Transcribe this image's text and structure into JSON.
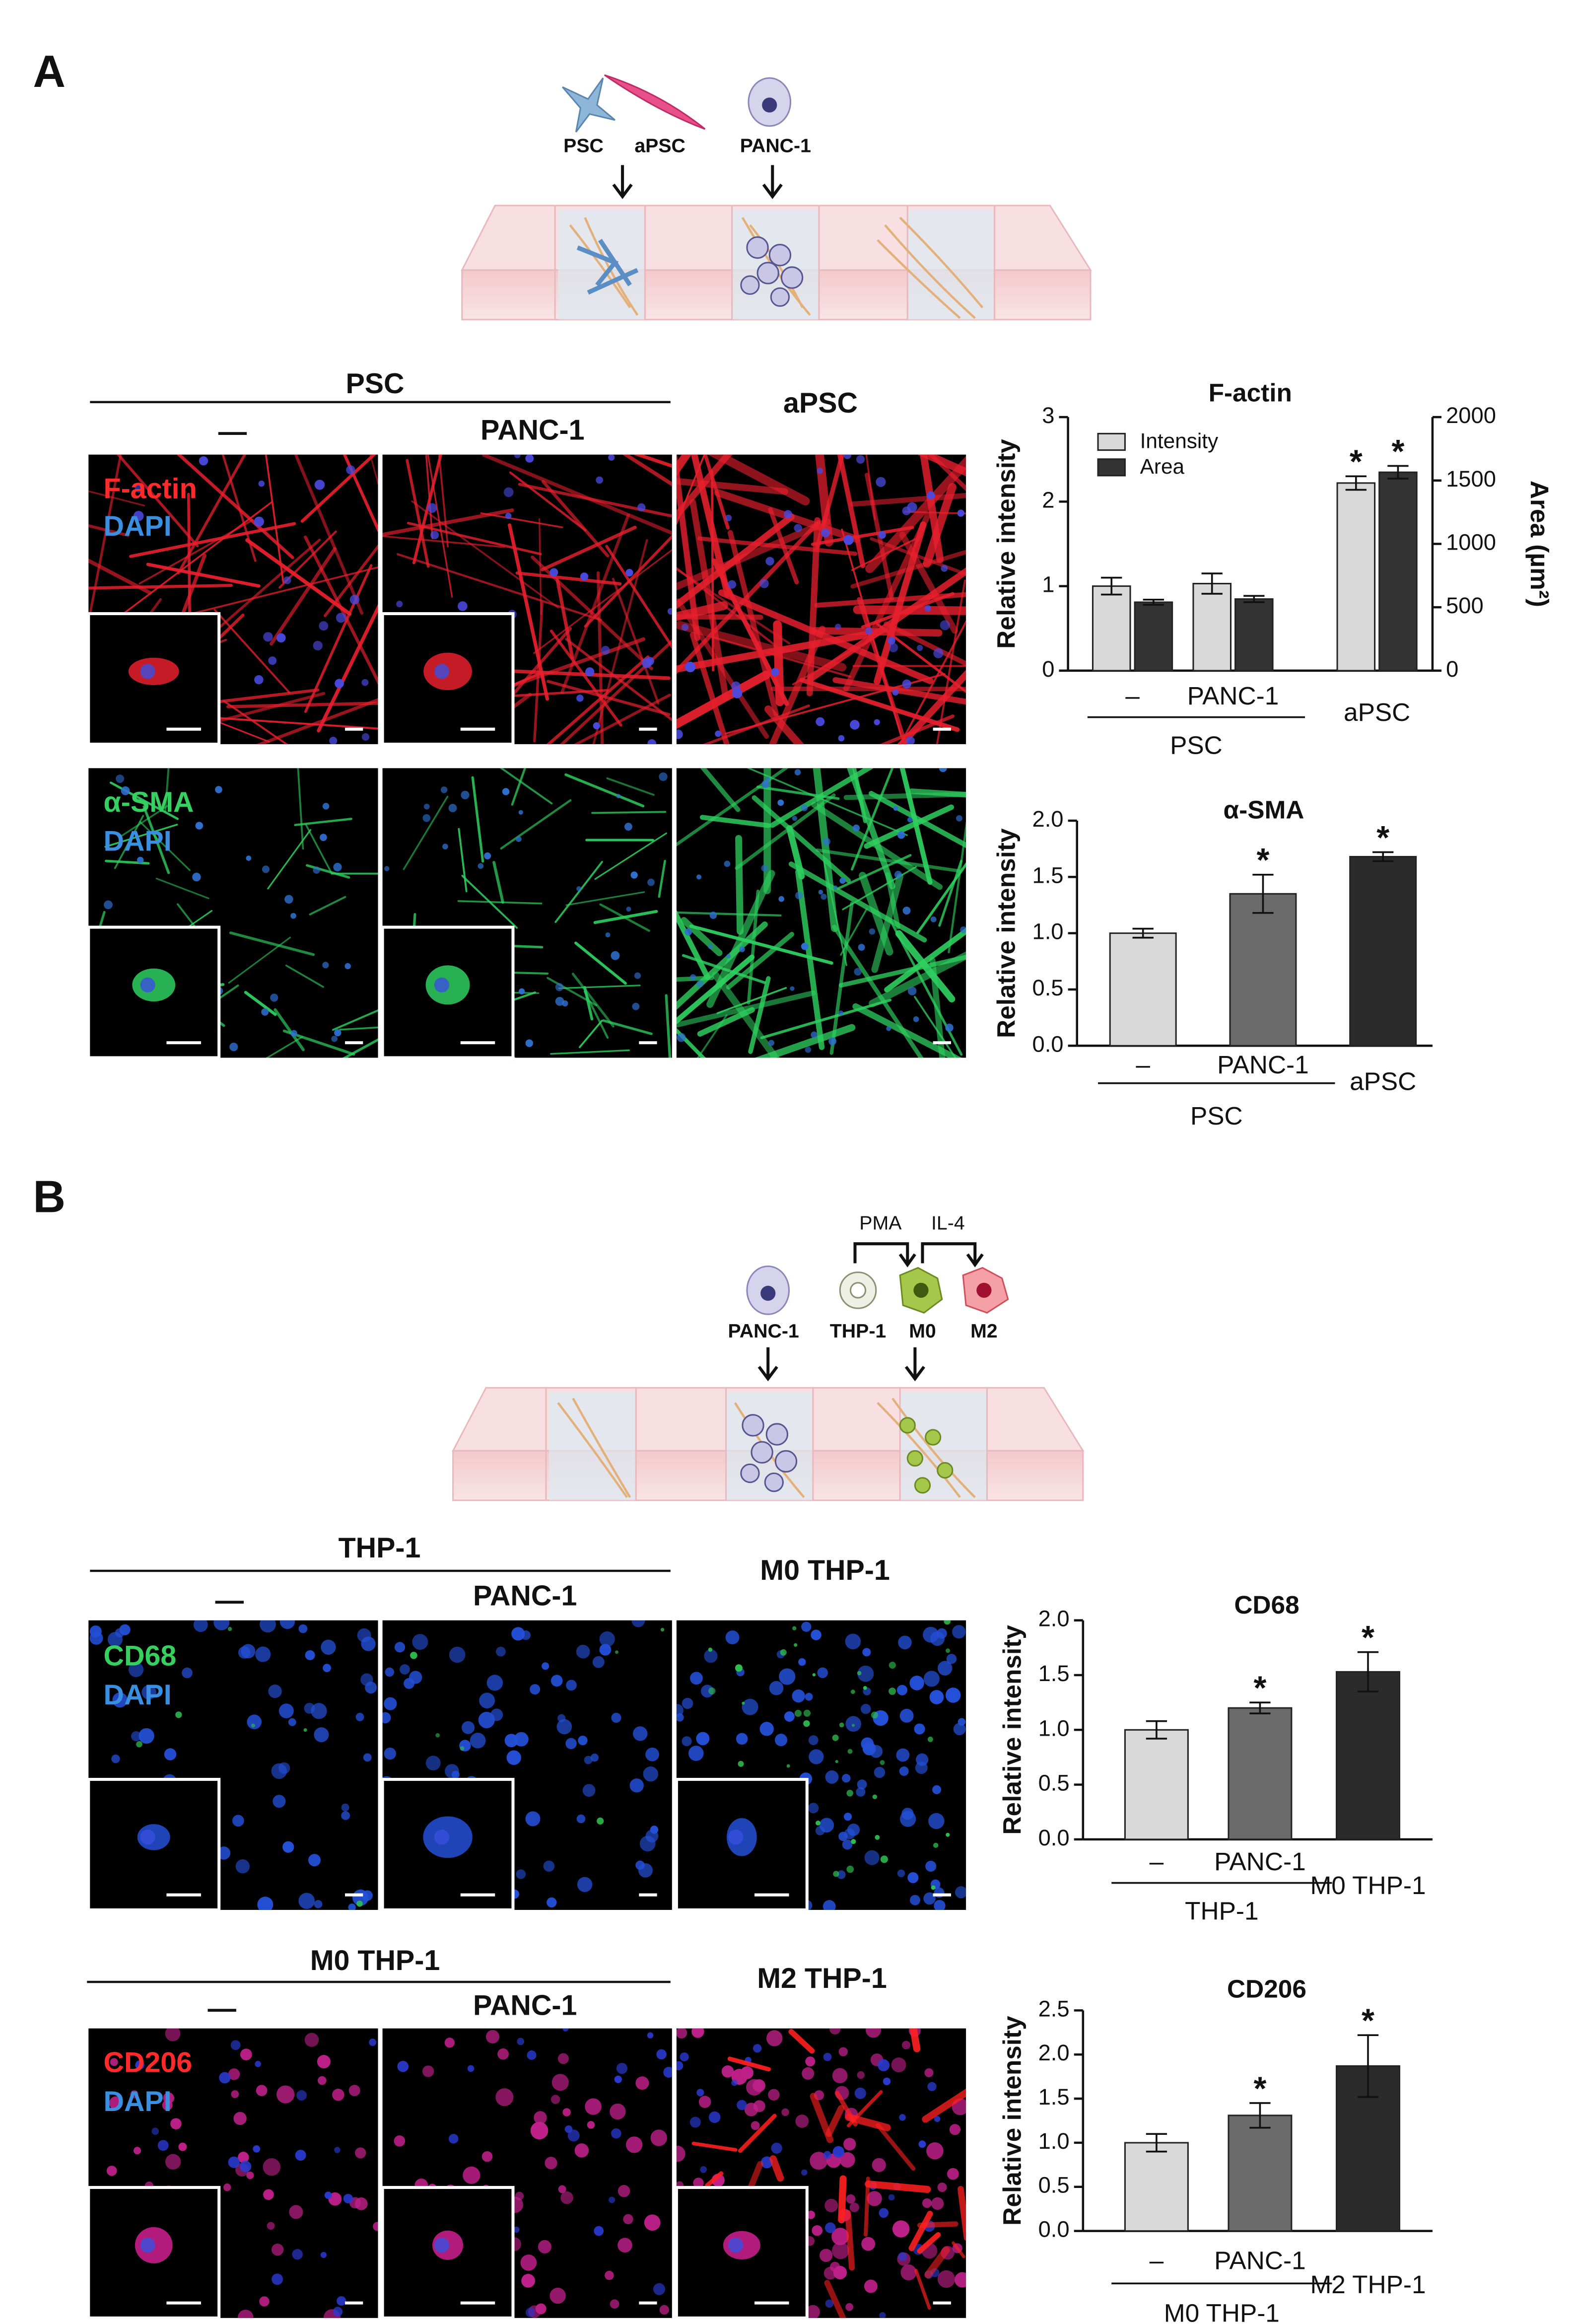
{
  "panel_a": {
    "label": "A",
    "schematic": {
      "cells": [
        "PSC",
        "aPSC",
        "PANC-1"
      ]
    },
    "rows": [
      {
        "group": "PSC",
        "conditions": [
          "—",
          "PANC-1"
        ],
        "third": "aPSC",
        "stains": [
          "F-actin",
          "DAPI"
        ]
      },
      {
        "stains": [
          "α-SMA",
          "DAPI"
        ]
      }
    ]
  },
  "panel_b": {
    "label": "B",
    "schematic": {
      "treatments": [
        "PMA",
        "IL-4"
      ],
      "cells": [
        "PANC-1",
        "THP-1",
        "M0",
        "M2"
      ]
    },
    "rows": [
      {
        "group": "THP-1",
        "conditions": [
          "—",
          "PANC-1"
        ],
        "third": "M0 THP-1",
        "stains": [
          "CD68",
          "DAPI"
        ]
      },
      {
        "group": "M0 THP-1",
        "conditions": [
          "—",
          "PANC-1"
        ],
        "third": "M2 THP-1",
        "stains": [
          "CD206",
          "DAPI"
        ]
      }
    ]
  },
  "chart_data": [
    {
      "type": "grouped_bar",
      "title": "F-actin",
      "categories": [
        "–",
        "PANC-1",
        "aPSC"
      ],
      "group_label": "PSC",
      "ylabel": "Relative intensity",
      "y2label": "Area (µm²)",
      "ylim": [
        0,
        3
      ],
      "yticks": [
        0,
        1,
        2,
        3
      ],
      "y2lim": [
        0,
        2000
      ],
      "y2ticks": [
        0,
        500,
        1000,
        1500,
        2000
      ],
      "legend": "upper left",
      "series": [
        {
          "name": "Intensity",
          "color": "#d9d9d9",
          "values": [
            1.0,
            1.03,
            2.22
          ],
          "errors": [
            0.1,
            0.12,
            0.08
          ],
          "significance": [
            null,
            null,
            "*"
          ]
        },
        {
          "name": "Area",
          "color": "#333333",
          "axis": "y2",
          "values": [
            540,
            565,
            1565
          ],
          "errors": [
            20,
            25,
            50
          ],
          "significance": [
            null,
            null,
            "*"
          ]
        }
      ]
    },
    {
      "type": "bar",
      "title": "α-SMA",
      "categories": [
        "–",
        "PANC-1",
        "aPSC"
      ],
      "group_label": "PSC",
      "ylabel": "Relative intensity",
      "ylim": [
        0,
        2
      ],
      "yticks": [
        {
          "value": 0,
          "label": "0.0"
        },
        0.5,
        {
          "value": 1,
          "label": "1.0"
        },
        1.5,
        {
          "value": 2,
          "label": "2.0"
        }
      ],
      "colors": [
        "#d9d9d9",
        "#6b6b6b",
        "#2b2b2b"
      ],
      "values": [
        1.0,
        1.35,
        1.68
      ],
      "errors": [
        0.04,
        0.17,
        0.04
      ],
      "significance": [
        null,
        "*",
        "*"
      ]
    },
    {
      "type": "bar",
      "title": "CD68",
      "categories": [
        "–",
        "PANC-1",
        "M0 THP-1"
      ],
      "group_label": "THP-1",
      "ylabel": "Relative intensity",
      "ylim": [
        0,
        2
      ],
      "yticks": [
        {
          "value": 0,
          "label": "0.0"
        },
        0.5,
        {
          "value": 1,
          "label": "1.0"
        },
        1.5,
        {
          "value": 2,
          "label": "2.0"
        }
      ],
      "colors": [
        "#d9d9d9",
        "#6b6b6b",
        "#2b2b2b"
      ],
      "values": [
        1.0,
        1.2,
        1.53
      ],
      "errors": [
        0.08,
        0.05,
        0.18
      ],
      "significance": [
        null,
        "*",
        "*"
      ]
    },
    {
      "type": "bar",
      "title": "CD206",
      "categories": [
        "–",
        "PANC-1",
        "M2 THP-1"
      ],
      "group_label": "M0 THP-1",
      "ylabel": "Relative intensity",
      "ylim": [
        0,
        2.5
      ],
      "yticks": [
        {
          "value": 0,
          "label": "0.0"
        },
        0.5,
        {
          "value": 1,
          "label": "1.0"
        },
        1.5,
        {
          "value": 2,
          "label": "2.0"
        },
        2.5
      ],
      "colors": [
        "#d9d9d9",
        "#6b6b6b",
        "#2b2b2b"
      ],
      "values": [
        1.0,
        1.31,
        1.87
      ],
      "errors": [
        0.1,
        0.14,
        0.35
      ],
      "significance": [
        null,
        "*",
        "*"
      ]
    }
  ]
}
